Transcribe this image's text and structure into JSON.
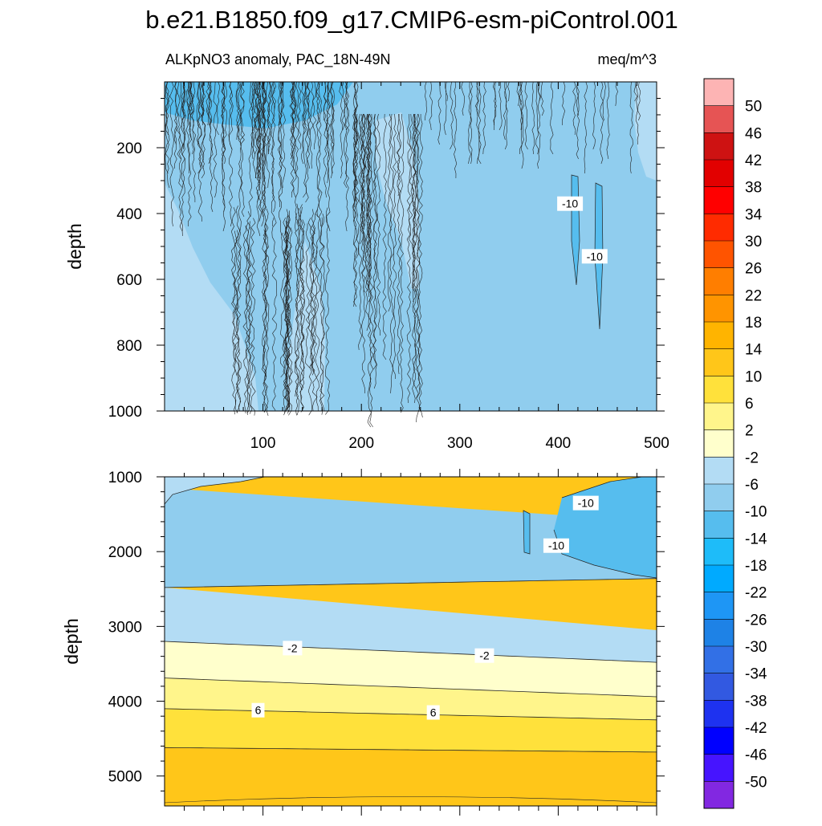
{
  "figure": {
    "title": "b.e21.B1850.f09_g17.CMIP6-esm-piControl.001",
    "subtitle_left": "ALKpNO3 anomaly, PAC_18N-49N",
    "subtitle_right": "meq/m^3"
  },
  "chart_data": [
    {
      "type": "heatmap",
      "panel": "upper",
      "ylabel": "depth",
      "xlim": [
        0,
        500
      ],
      "ylim": [
        1000,
        0
      ],
      "y_inverted": true,
      "x_ticks": [
        100,
        200,
        300,
        400,
        500
      ],
      "y_ticks": [
        200,
        400,
        600,
        800,
        1000
      ],
      "contour_labels": [
        {
          "text": "-10",
          "x": 412,
          "y": 370
        },
        {
          "text": "-10",
          "x": 437,
          "y": 530
        }
      ]
    },
    {
      "type": "heatmap",
      "panel": "lower",
      "ylabel": "depth",
      "xlim": [
        0,
        500
      ],
      "ylim": [
        5400,
        1000
      ],
      "y_inverted": true,
      "y_ticks": [
        1000,
        2000,
        3000,
        4000,
        5000
      ],
      "contour_labels": [
        {
          "text": "-10",
          "x": 428,
          "y": 1350
        },
        {
          "text": "-10",
          "x": 398,
          "y": 1920
        },
        {
          "text": "-2",
          "x": 130,
          "y": 3290
        },
        {
          "text": "-2",
          "x": 325,
          "y": 3390
        },
        {
          "text": "6",
          "x": 95,
          "y": 4120
        },
        {
          "text": "6",
          "x": 273,
          "y": 4150
        }
      ],
      "bands": [
        {
          "level": "-10 to -14",
          "top": [
            null,
            null
          ],
          "bottom": [
            null,
            null
          ]
        },
        {
          "level": "-10 to -6",
          "top": [
            1150,
            1600
          ],
          "bottom": [
            2480,
            2360
          ]
        },
        {
          "level": "-6 to -2",
          "top": [
            2480,
            3050
          ],
          "bottom": [
            3200,
            3480
          ]
        },
        {
          "level": "-2 to 2",
          "top": [
            3200,
            3480
          ],
          "bottom": [
            3690,
            3940
          ]
        },
        {
          "level": "2 to 6",
          "top": [
            3690,
            3940
          ],
          "bottom": [
            4100,
            4250
          ]
        },
        {
          "level": "6 to 10",
          "top": [
            4100,
            4250
          ],
          "bottom": [
            4620,
            4680
          ]
        }
      ]
    }
  ],
  "colorbar": {
    "labels": [
      "50",
      "46",
      "42",
      "38",
      "34",
      "30",
      "26",
      "22",
      "18",
      "14",
      "10",
      "6",
      "2",
      "-2",
      "-6",
      "-10",
      "-14",
      "-18",
      "-22",
      "-26",
      "-30",
      "-34",
      "-38",
      "-42",
      "-46",
      "-50"
    ],
    "colors": [
      "#fdb4b4",
      "#e65454",
      "#ce1212",
      "#e20000",
      "#ff0000",
      "#ff2b00",
      "#ff5400",
      "#ff7e00",
      "#ff9400",
      "#ffb400",
      "#ffc619",
      "#ffe13b",
      "#fff58b",
      "#ffffcc",
      "#b3dcf4",
      "#90cdee",
      "#56bdee",
      "#1ebcf9",
      "#00aaff",
      "#1e96f5",
      "#1e82e6",
      "#3270e6",
      "#3259e1",
      "#1e32f0",
      "#0000ff",
      "#4614ff",
      "#8228e1"
    ]
  }
}
